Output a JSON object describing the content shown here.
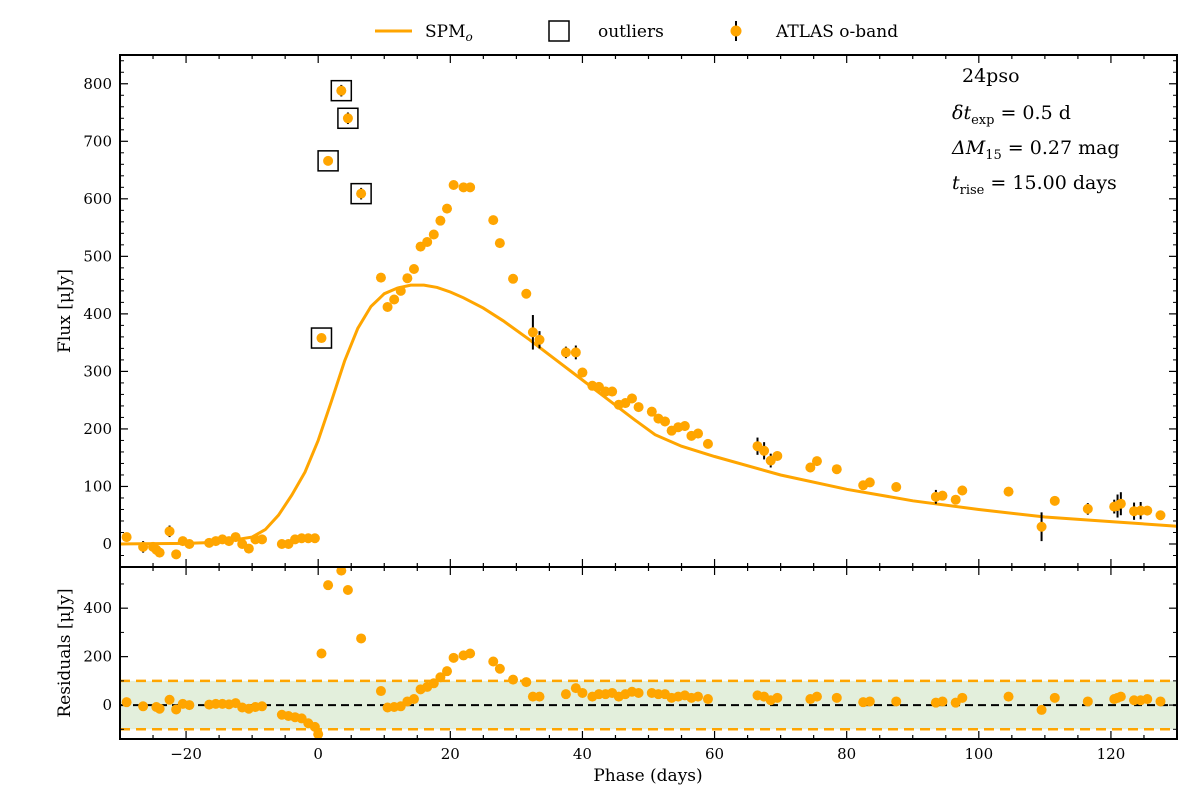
{
  "colors": {
    "data": "#FFA500",
    "model": "#FFA500",
    "band_fill": "#e3efdc",
    "frame": "#000000"
  },
  "legend": {
    "model_label": "SPM",
    "model_sub": "o",
    "outliers_label": "outliers",
    "data_label": "ATLAS o-band"
  },
  "annotations": {
    "name": "24pso",
    "texp": {
      "sym": "δt",
      "sub": "exp",
      "rest": " = 0.5 d"
    },
    "dm15": {
      "sym": "ΔM",
      "sub": "15",
      "rest": " = 0.27 mag"
    },
    "trise": {
      "sym": "t",
      "sub": "rise",
      "rest": " = 15.00 days"
    }
  },
  "chart_data": [
    {
      "type": "scatter",
      "panel": "main",
      "xlabel": "Phase (days)",
      "ylabel": "Flux [μJy]",
      "xlim": [
        -30,
        130
      ],
      "ylim": [
        -40,
        850
      ],
      "xticks": [
        -20,
        0,
        20,
        40,
        60,
        80,
        100,
        120
      ],
      "yticks": [
        0,
        100,
        200,
        300,
        400,
        500,
        600,
        700,
        800
      ],
      "grid": false,
      "legend_position": "top-center, above plot",
      "series": [
        {
          "name": "ATLAS o-band",
          "kind": "points-with-errorbars",
          "points": [
            [
              -29,
              12,
              8
            ],
            [
              -26.5,
              -5,
              10
            ],
            [
              -25,
              -5,
              6
            ],
            [
              -24.5,
              -10,
              8
            ],
            [
              -24,
              -15,
              6
            ],
            [
              -22.5,
              22,
              10
            ],
            [
              -21.5,
              -18,
              8
            ],
            [
              -20.5,
              5,
              6
            ],
            [
              -19.5,
              0,
              6
            ],
            [
              -16.5,
              2,
              5
            ],
            [
              -15.5,
              5,
              5
            ],
            [
              -14.5,
              8,
              5
            ],
            [
              -13.5,
              5,
              5
            ],
            [
              -12.5,
              12,
              6
            ],
            [
              -11.5,
              0,
              5
            ],
            [
              -10.5,
              -8,
              6
            ],
            [
              -9.5,
              8,
              5
            ],
            [
              -8.5,
              8,
              5
            ],
            [
              -5.5,
              0,
              5
            ],
            [
              -4.5,
              0,
              5
            ],
            [
              -3.5,
              8,
              5
            ],
            [
              -2.5,
              10,
              5
            ],
            [
              -1.5,
              10,
              5
            ],
            [
              -0.5,
              10,
              5
            ],
            [
              9.5,
              463,
              7
            ],
            [
              10.5,
              412,
              6
            ],
            [
              11.5,
              425,
              6
            ],
            [
              12.5,
              440,
              6
            ],
            [
              13.5,
              462,
              6
            ],
            [
              14.5,
              478,
              6
            ],
            [
              15.5,
              517,
              6
            ],
            [
              16.5,
              525,
              6
            ],
            [
              17.5,
              538,
              6
            ],
            [
              18.5,
              562,
              6
            ],
            [
              19.5,
              583,
              6
            ],
            [
              20.5,
              624,
              6
            ],
            [
              22,
              620,
              6
            ],
            [
              23,
              620,
              6
            ],
            [
              26.5,
              563,
              6
            ],
            [
              27.5,
              523,
              6
            ],
            [
              29.5,
              461,
              6
            ],
            [
              31.5,
              435,
              6
            ],
            [
              32.5,
              368,
              30
            ],
            [
              33.5,
              355,
              15
            ],
            [
              37.5,
              333,
              10
            ],
            [
              39,
              333,
              12
            ],
            [
              40,
              298,
              8
            ],
            [
              41.5,
              275,
              8
            ],
            [
              42.5,
              273,
              8
            ],
            [
              43.5,
              265,
              8
            ],
            [
              44.5,
              265,
              8
            ],
            [
              45.5,
              242,
              8
            ],
            [
              46.5,
              245,
              8
            ],
            [
              47.5,
              253,
              8
            ],
            [
              48.5,
              238,
              8
            ],
            [
              50.5,
              230,
              8
            ],
            [
              51.5,
              218,
              8
            ],
            [
              52.5,
              213,
              8
            ],
            [
              53.5,
              197,
              8
            ],
            [
              54.5,
              203,
              8
            ],
            [
              55.5,
              205,
              8
            ],
            [
              56.5,
              188,
              8
            ],
            [
              57.5,
              192,
              8
            ],
            [
              59,
              174,
              8
            ],
            [
              66.5,
              170,
              15
            ],
            [
              67.5,
              162,
              15
            ],
            [
              68.5,
              145,
              12
            ],
            [
              69.5,
              153,
              8
            ],
            [
              74.5,
              133,
              8
            ],
            [
              75.5,
              144,
              8
            ],
            [
              78.5,
              130,
              8
            ],
            [
              82.5,
              102,
              8
            ],
            [
              83.5,
              107,
              8
            ],
            [
              87.5,
              99,
              8
            ],
            [
              93.5,
              82,
              12
            ],
            [
              94.5,
              84,
              8
            ],
            [
              96.5,
              77,
              8
            ],
            [
              97.5,
              93,
              8
            ],
            [
              104.5,
              91,
              8
            ],
            [
              109.5,
              30,
              25
            ],
            [
              111.5,
              75,
              8
            ],
            [
              116.5,
              61,
              10
            ],
            [
              120.5,
              65,
              12
            ],
            [
              121,
              66,
              20
            ],
            [
              121.5,
              70,
              20
            ],
            [
              123.5,
              57,
              15
            ],
            [
              124.5,
              58,
              15
            ],
            [
              125.5,
              58,
              8
            ],
            [
              127.5,
              50,
              8
            ]
          ]
        },
        {
          "name": "outliers",
          "kind": "boxed-points",
          "points": [
            [
              0.5,
              358,
              6
            ],
            [
              1.5,
              666,
              6
            ],
            [
              3.5,
              788,
              10
            ],
            [
              4.5,
              740,
              10
            ],
            [
              6.5,
              609,
              10
            ]
          ]
        },
        {
          "name": "SPM",
          "kind": "model-line",
          "points": [
            [
              -30,
              0
            ],
            [
              -20,
              1
            ],
            [
              -15,
              3
            ],
            [
              -10,
              12
            ],
            [
              -8,
              25
            ],
            [
              -6,
              50
            ],
            [
              -4,
              85
            ],
            [
              -2,
              125
            ],
            [
              0,
              180
            ],
            [
              2,
              248
            ],
            [
              4,
              318
            ],
            [
              6,
              375
            ],
            [
              8,
              413
            ],
            [
              10,
              435
            ],
            [
              12,
              445
            ],
            [
              14,
              450
            ],
            [
              16,
              450
            ],
            [
              18,
              446
            ],
            [
              20,
              438
            ],
            [
              22,
              428
            ],
            [
              25,
              410
            ],
            [
              28,
              388
            ],
            [
              32,
              355
            ],
            [
              36,
              320
            ],
            [
              40,
              285
            ],
            [
              44,
              250
            ],
            [
              48,
              215
            ],
            [
              51,
              190
            ],
            [
              55,
              170
            ],
            [
              60,
              152
            ],
            [
              70,
              120
            ],
            [
              80,
              95
            ],
            [
              90,
              75
            ],
            [
              100,
              60
            ],
            [
              110,
              47
            ],
            [
              120,
              39
            ],
            [
              130,
              31
            ]
          ]
        }
      ]
    },
    {
      "type": "scatter",
      "panel": "residuals",
      "xlabel": "Phase (days)",
      "ylabel": "Residuals [μJy]",
      "xlim": [
        -30,
        130
      ],
      "ylim": [
        -140,
        570
      ],
      "yticks": [
        0,
        200,
        400
      ],
      "band": [
        -100,
        100
      ],
      "zero_line": true,
      "series": [
        {
          "name": "ATLAS o-band",
          "points": [
            [
              -29,
              12
            ],
            [
              -26.5,
              -5
            ],
            [
              -24.5,
              -8
            ],
            [
              -24,
              -15
            ],
            [
              -22.5,
              22
            ],
            [
              -21.5,
              -18
            ],
            [
              -20.5,
              5
            ],
            [
              -19.5,
              0
            ],
            [
              -16.5,
              2
            ],
            [
              -15.5,
              5
            ],
            [
              -14.5,
              5
            ],
            [
              -13.5,
              3
            ],
            [
              -12.5,
              8
            ],
            [
              -11.5,
              -10
            ],
            [
              -10.5,
              -15
            ],
            [
              -9.5,
              -8
            ],
            [
              -8.5,
              -5
            ],
            [
              -5.5,
              -40
            ],
            [
              -4.5,
              -45
            ],
            [
              -3.5,
              -50
            ],
            [
              -2.5,
              -55
            ],
            [
              -1.5,
              -75
            ],
            [
              -0.5,
              -90
            ],
            [
              0,
              -120
            ],
            [
              0.5,
              213
            ],
            [
              1.5,
              495
            ],
            [
              3.5,
              555
            ],
            [
              4.5,
              475
            ],
            [
              6.5,
              275
            ],
            [
              9.5,
              58
            ],
            [
              10.5,
              -10
            ],
            [
              11.5,
              -8
            ],
            [
              12.5,
              -5
            ],
            [
              13.5,
              15
            ],
            [
              14.5,
              25
            ],
            [
              15.5,
              65
            ],
            [
              16.5,
              75
            ],
            [
              17.5,
              90
            ],
            [
              18.5,
              115
            ],
            [
              19.5,
              140
            ],
            [
              20.5,
              195
            ],
            [
              22,
              205
            ],
            [
              23,
              213
            ],
            [
              26.5,
              180
            ],
            [
              27.5,
              150
            ],
            [
              29.5,
              105
            ],
            [
              31.5,
              95
            ],
            [
              32.5,
              35
            ],
            [
              33.5,
              35
            ],
            [
              37.5,
              45
            ],
            [
              39,
              70
            ],
            [
              40,
              50
            ],
            [
              41.5,
              35
            ],
            [
              42.5,
              45
            ],
            [
              43.5,
              45
            ],
            [
              44.5,
              50
            ],
            [
              45.5,
              35
            ],
            [
              46.5,
              45
            ],
            [
              47.5,
              55
            ],
            [
              48.5,
              50
            ],
            [
              50.5,
              50
            ],
            [
              51.5,
              45
            ],
            [
              52.5,
              45
            ],
            [
              53.5,
              30
            ],
            [
              54.5,
              35
            ],
            [
              55.5,
              40
            ],
            [
              56.5,
              30
            ],
            [
              57.5,
              35
            ],
            [
              59,
              25
            ],
            [
              66.5,
              40
            ],
            [
              67.5,
              35
            ],
            [
              68.5,
              20
            ],
            [
              69.5,
              30
            ],
            [
              74.5,
              25
            ],
            [
              75.5,
              35
            ],
            [
              78.5,
              30
            ],
            [
              82.5,
              12
            ],
            [
              83.5,
              15
            ],
            [
              87.5,
              15
            ],
            [
              93.5,
              10
            ],
            [
              94.5,
              15
            ],
            [
              96.5,
              10
            ],
            [
              97.5,
              30
            ],
            [
              104.5,
              35
            ],
            [
              109.5,
              -20
            ],
            [
              111.5,
              30
            ],
            [
              116.5,
              15
            ],
            [
              120.5,
              25
            ],
            [
              121,
              30
            ],
            [
              121.5,
              35
            ],
            [
              123.5,
              20
            ],
            [
              124.5,
              20
            ],
            [
              125.5,
              25
            ],
            [
              127.5,
              15
            ]
          ]
        }
      ]
    }
  ]
}
